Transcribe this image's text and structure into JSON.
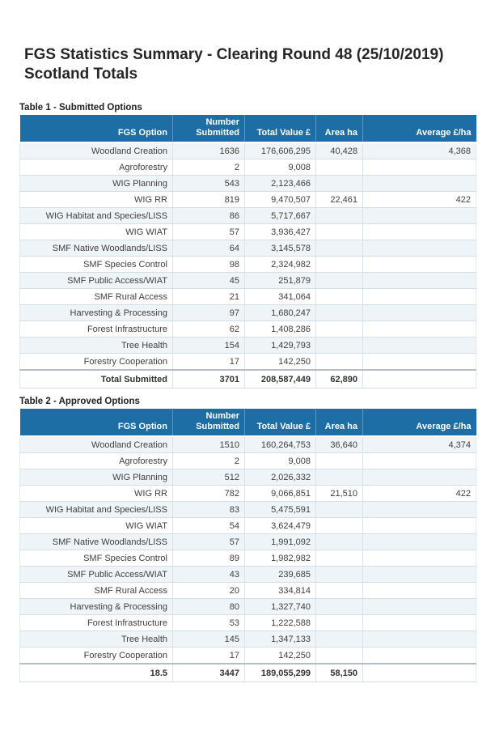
{
  "colors": {
    "header_bg": "#1C6EA4",
    "header_text": "#FFFFFF",
    "row_alt_bg": "#EFF4F8",
    "grid_border": "#D3DFE7",
    "total_divider": "#B3BFC7"
  },
  "header": {
    "title_line1": "FGS Statistics Summary - Clearing Round 48 (25/10/2019)",
    "title_line2": "Scotland Totals"
  },
  "columns": [
    "FGS Option",
    "Number Submitted",
    "Total Value £",
    "Area ha",
    "Average £/ha"
  ],
  "tables": [
    {
      "caption": "Table 1 - Submitted Options",
      "rows": [
        {
          "option": "Woodland Creation",
          "number": "1636",
          "value": "176,606,295",
          "area": "40,428",
          "average": "4,368"
        },
        {
          "option": "Agroforestry",
          "number": "2",
          "value": "9,008",
          "area": "",
          "average": ""
        },
        {
          "option": "WIG Planning",
          "number": "543",
          "value": "2,123,466",
          "area": "",
          "average": ""
        },
        {
          "option": "WIG RR",
          "number": "819",
          "value": "9,470,507",
          "area": "22,461",
          "average": "422"
        },
        {
          "option": "WIG Habitat and Species/LISS",
          "number": "86",
          "value": "5,717,667",
          "area": "",
          "average": ""
        },
        {
          "option": "WIG WIAT",
          "number": "57",
          "value": "3,936,427",
          "area": "",
          "average": ""
        },
        {
          "option": "SMF Native Woodlands/LISS",
          "number": "64",
          "value": "3,145,578",
          "area": "",
          "average": ""
        },
        {
          "option": "SMF Species Control",
          "number": "98",
          "value": "2,324,982",
          "area": "",
          "average": ""
        },
        {
          "option": "SMF Public Access/WIAT",
          "number": "45",
          "value": "251,879",
          "area": "",
          "average": ""
        },
        {
          "option": "SMF Rural Access",
          "number": "21",
          "value": "341,064",
          "area": "",
          "average": ""
        },
        {
          "option": "Harvesting & Processing",
          "number": "97",
          "value": "1,680,247",
          "area": "",
          "average": ""
        },
        {
          "option": "Forest Infrastructure",
          "number": "62",
          "value": "1,408,286",
          "area": "",
          "average": ""
        },
        {
          "option": "Tree Health",
          "number": "154",
          "value": "1,429,793",
          "area": "",
          "average": ""
        },
        {
          "option": "Forestry Cooperation",
          "number": "17",
          "value": "142,250",
          "area": "",
          "average": ""
        }
      ],
      "total": {
        "option": "Total Submitted",
        "number": "3701",
        "value": "208,587,449",
        "area": "62,890",
        "average": ""
      }
    },
    {
      "caption": "Table 2 - Approved Options",
      "rows": [
        {
          "option": "Woodland Creation",
          "number": "1510",
          "value": "160,264,753",
          "area": "36,640",
          "average": "4,374"
        },
        {
          "option": "Agroforestry",
          "number": "2",
          "value": "9,008",
          "area": "",
          "average": ""
        },
        {
          "option": "WIG Planning",
          "number": "512",
          "value": "2,026,332",
          "area": "",
          "average": ""
        },
        {
          "option": "WIG RR",
          "number": "782",
          "value": "9,066,851",
          "area": "21,510",
          "average": "422"
        },
        {
          "option": "WIG Habitat and Species/LISS",
          "number": "83",
          "value": "5,475,591",
          "area": "",
          "average": ""
        },
        {
          "option": "WIG WIAT",
          "number": "54",
          "value": "3,624,479",
          "area": "",
          "average": ""
        },
        {
          "option": "SMF Native Woodlands/LISS",
          "number": "57",
          "value": "1,991,092",
          "area": "",
          "average": ""
        },
        {
          "option": "SMF Species Control",
          "number": "89",
          "value": "1,982,982",
          "area": "",
          "average": ""
        },
        {
          "option": "SMF Public Access/WIAT",
          "number": "43",
          "value": "239,685",
          "area": "",
          "average": ""
        },
        {
          "option": "SMF Rural Access",
          "number": "20",
          "value": "334,814",
          "area": "",
          "average": ""
        },
        {
          "option": "Harvesting & Processing",
          "number": "80",
          "value": "1,327,740",
          "area": "",
          "average": ""
        },
        {
          "option": "Forest Infrastructure",
          "number": "53",
          "value": "1,222,588",
          "area": "",
          "average": ""
        },
        {
          "option": "Tree Health",
          "number": "145",
          "value": "1,347,133",
          "area": "",
          "average": ""
        },
        {
          "option": "Forestry Cooperation",
          "number": "17",
          "value": "142,250",
          "area": "",
          "average": ""
        }
      ],
      "total": {
        "option": "18.5",
        "number": "3447",
        "value": "189,055,299",
        "area": "58,150",
        "average": ""
      }
    }
  ]
}
